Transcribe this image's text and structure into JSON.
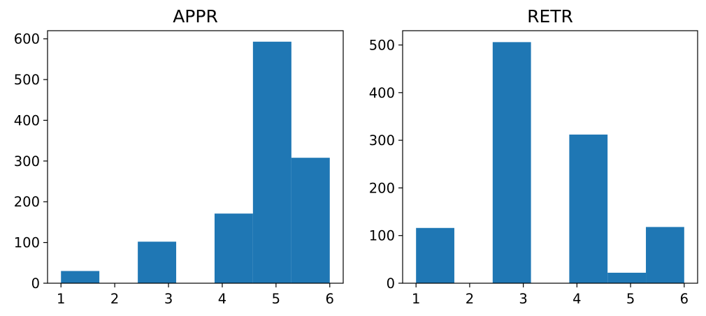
{
  "chart_data": [
    {
      "type": "bar",
      "title": "APPR",
      "xlabel": "",
      "ylabel": "",
      "xlim": [
        0.75,
        6.25
      ],
      "ylim": [
        0,
        620
      ],
      "xticks": [
        "1",
        "2",
        "3",
        "4",
        "5",
        "6"
      ],
      "yticks": [
        "0",
        "100",
        "200",
        "300",
        "400",
        "500",
        "600"
      ],
      "grid": false,
      "color": "#1f77b4",
      "bins": [
        {
          "x0": 1.0,
          "x1": 1.714,
          "value": 30
        },
        {
          "x0": 1.714,
          "x1": 2.429,
          "value": 0
        },
        {
          "x0": 2.429,
          "x1": 3.143,
          "value": 102
        },
        {
          "x0": 3.143,
          "x1": 3.857,
          "value": 0
        },
        {
          "x0": 3.857,
          "x1": 4.571,
          "value": 171
        },
        {
          "x0": 4.571,
          "x1": 5.286,
          "value": 593
        },
        {
          "x0": 5.286,
          "x1": 6.0,
          "value": 308
        }
      ]
    },
    {
      "type": "bar",
      "title": "RETR",
      "xlabel": "",
      "ylabel": "",
      "xlim": [
        0.75,
        6.25
      ],
      "ylim": [
        0,
        530
      ],
      "xticks": [
        "1",
        "2",
        "3",
        "4",
        "5",
        "6"
      ],
      "yticks": [
        "0",
        "100",
        "200",
        "300",
        "400",
        "500"
      ],
      "grid": false,
      "color": "#1f77b4",
      "bins": [
        {
          "x0": 1.0,
          "x1": 1.714,
          "value": 116
        },
        {
          "x0": 1.714,
          "x1": 2.429,
          "value": 0
        },
        {
          "x0": 2.429,
          "x1": 3.143,
          "value": 506
        },
        {
          "x0": 3.143,
          "x1": 3.857,
          "value": 0
        },
        {
          "x0": 3.857,
          "x1": 4.571,
          "value": 312
        },
        {
          "x0": 4.571,
          "x1": 5.286,
          "value": 22
        },
        {
          "x0": 5.286,
          "x1": 6.0,
          "value": 118
        }
      ]
    }
  ]
}
